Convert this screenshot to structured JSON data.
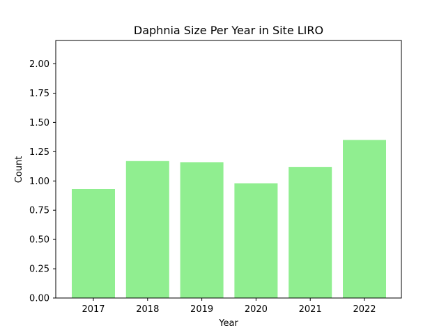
{
  "chart_data": {
    "type": "bar",
    "title": "Daphnia Size Per Year in Site LIRO",
    "xlabel": "Year",
    "ylabel": "Count",
    "categories": [
      "2017",
      "2018",
      "2019",
      "2020",
      "2021",
      "2022"
    ],
    "values": [
      0.93,
      1.17,
      1.16,
      0.98,
      1.12,
      1.35
    ],
    "ylim": [
      0,
      2.2
    ],
    "yticks": [
      0.0,
      0.25,
      0.5,
      0.75,
      1.0,
      1.25,
      1.5,
      1.75,
      2.0
    ],
    "ytick_labels": [
      "0.00",
      "0.25",
      "0.50",
      "0.75",
      "1.00",
      "1.25",
      "1.50",
      "1.75",
      "2.00"
    ],
    "grid": false,
    "legend": "none",
    "colors": {
      "bar": "#90ee90",
      "axis": "#000000",
      "background": "#ffffff"
    }
  }
}
